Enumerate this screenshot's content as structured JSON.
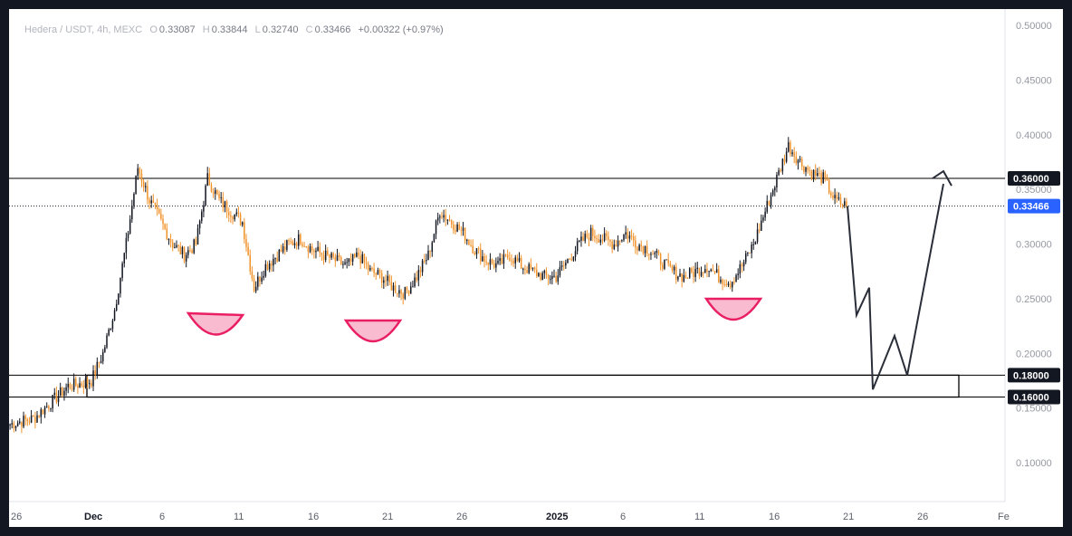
{
  "legend": {
    "symbol": "Hedera / USDT, 4h, MEXC",
    "open_label": "O",
    "open": "0.33087",
    "high_label": "H",
    "high": "0.33844",
    "low_label": "L",
    "low": "0.32740",
    "close_label": "C",
    "close": "0.33466",
    "change": "+0.00322 (+0.97%)"
  },
  "colors": {
    "up": "#131722",
    "down": "#f0922a",
    "accent_pink": "#e91e63",
    "pink_fill": "#f8bbd0",
    "resistance": "#000000",
    "price_tag_bg": "#131722",
    "current_tag_bg": "#2962ff"
  },
  "chart_data": {
    "type": "candlestick",
    "title": "",
    "y_axis": {
      "ticks": [
        0.1,
        0.15,
        0.2,
        0.25,
        0.3,
        0.35,
        0.4,
        0.45,
        0.5
      ],
      "tick_labels": [
        "0.10000",
        "0.15000",
        "0.20000",
        "0.25000",
        "0.30000",
        "0.35000",
        "0.40000",
        "0.45000",
        "0.50000"
      ],
      "range": [
        0.05,
        0.52
      ]
    },
    "x_axis": {
      "tick_labels": [
        "26",
        "Dec",
        "6",
        "11",
        "16",
        "21",
        "26",
        "2025",
        "6",
        "11",
        "16",
        "21",
        "26",
        "Fe"
      ]
    },
    "price_levels": [
      {
        "label": "0.36000",
        "value": 0.36
      },
      {
        "label": "0.18000",
        "value": 0.18
      },
      {
        "label": "0.16000",
        "value": 0.16
      }
    ],
    "current_price": {
      "label": "0.33466",
      "value": 0.33466
    },
    "support_zone": {
      "top": 0.18,
      "bottom": 0.16
    },
    "close_path": [
      0.135,
      0.138,
      0.14,
      0.15,
      0.16,
      0.17,
      0.172,
      0.175,
      0.2,
      0.24,
      0.3,
      0.37,
      0.34,
      0.32,
      0.3,
      0.29,
      0.3,
      0.36,
      0.34,
      0.33,
      0.32,
      0.26,
      0.28,
      0.29,
      0.3,
      0.305,
      0.295,
      0.29,
      0.285,
      0.28,
      0.29,
      0.275,
      0.27,
      0.26,
      0.255,
      0.27,
      0.29,
      0.33,
      0.32,
      0.31,
      0.295,
      0.285,
      0.28,
      0.29,
      0.28,
      0.275,
      0.27,
      0.27,
      0.285,
      0.3,
      0.31,
      0.305,
      0.3,
      0.31,
      0.3,
      0.295,
      0.285,
      0.275,
      0.27,
      0.275,
      0.28,
      0.27,
      0.265,
      0.28,
      0.3,
      0.33,
      0.36,
      0.39,
      0.375,
      0.365,
      0.36,
      0.34,
      0.33466
    ],
    "projection": [
      0.33466,
      0.235,
      0.26,
      0.167,
      0.216,
      0.18,
      0.355
    ],
    "annotations": [
      "pink cup marker",
      "pink cup marker",
      "pink cup marker",
      "projection arrow"
    ]
  }
}
